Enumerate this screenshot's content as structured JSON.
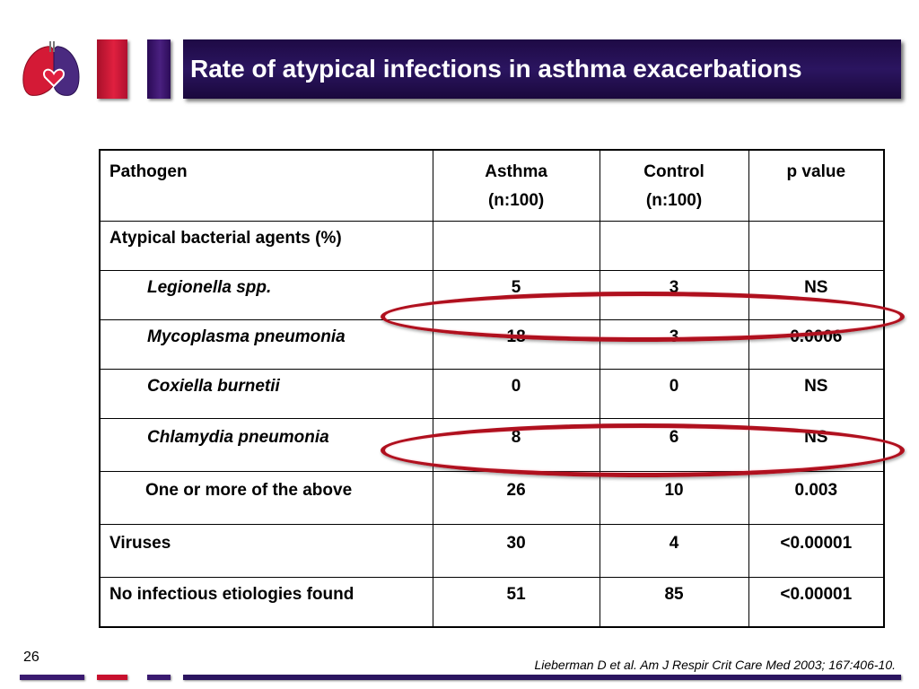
{
  "header": {
    "title": "Rate of atypical infections in asthma exacerbations"
  },
  "table": {
    "columns": [
      {
        "label": "Pathogen",
        "sub": ""
      },
      {
        "label": "Asthma",
        "sub": "(n:100)"
      },
      {
        "label": "Control",
        "sub": "(n:100)"
      },
      {
        "label": "p value",
        "sub": ""
      }
    ],
    "rows": [
      {
        "pathogen": "Atypical bacterial agents (%)",
        "asthma": "",
        "control": "",
        "p": ""
      },
      {
        "pathogen": "Legionella spp.",
        "asthma": "5",
        "control": "3",
        "p": "NS"
      },
      {
        "pathogen": "Mycoplasma pneumonia",
        "asthma": "18",
        "control": "3",
        "p": "0.0006"
      },
      {
        "pathogen": "Coxiella burnetii",
        "asthma": "0",
        "control": "0",
        "p": "NS"
      },
      {
        "pathogen": "Chlamydia pneumonia",
        "asthma": "8",
        "control": "6",
        "p": "NS"
      },
      {
        "pathogen": "One or more of the above",
        "asthma": "26",
        "control": "10",
        "p": "0.003"
      },
      {
        "pathogen": "Viruses",
        "asthma": "30",
        "control": "4",
        "p": "<0.00001"
      },
      {
        "pathogen": "No infectious etiologies found",
        "asthma": "51",
        "control": "85",
        "p": "<0.00001"
      }
    ]
  },
  "highlights": {
    "color": "#b0101e",
    "rows": [
      "Mycoplasma pneumonia",
      "One or more of the above"
    ]
  },
  "footer": {
    "slide_number": "26",
    "citation": "Lieberman D et al. Am J Respir Crit Care Med 2003; 167:406-10."
  },
  "colors": {
    "title_bar": "#2b1560",
    "accent_red": "#c8102e",
    "accent_purple": "#3a1a70"
  }
}
